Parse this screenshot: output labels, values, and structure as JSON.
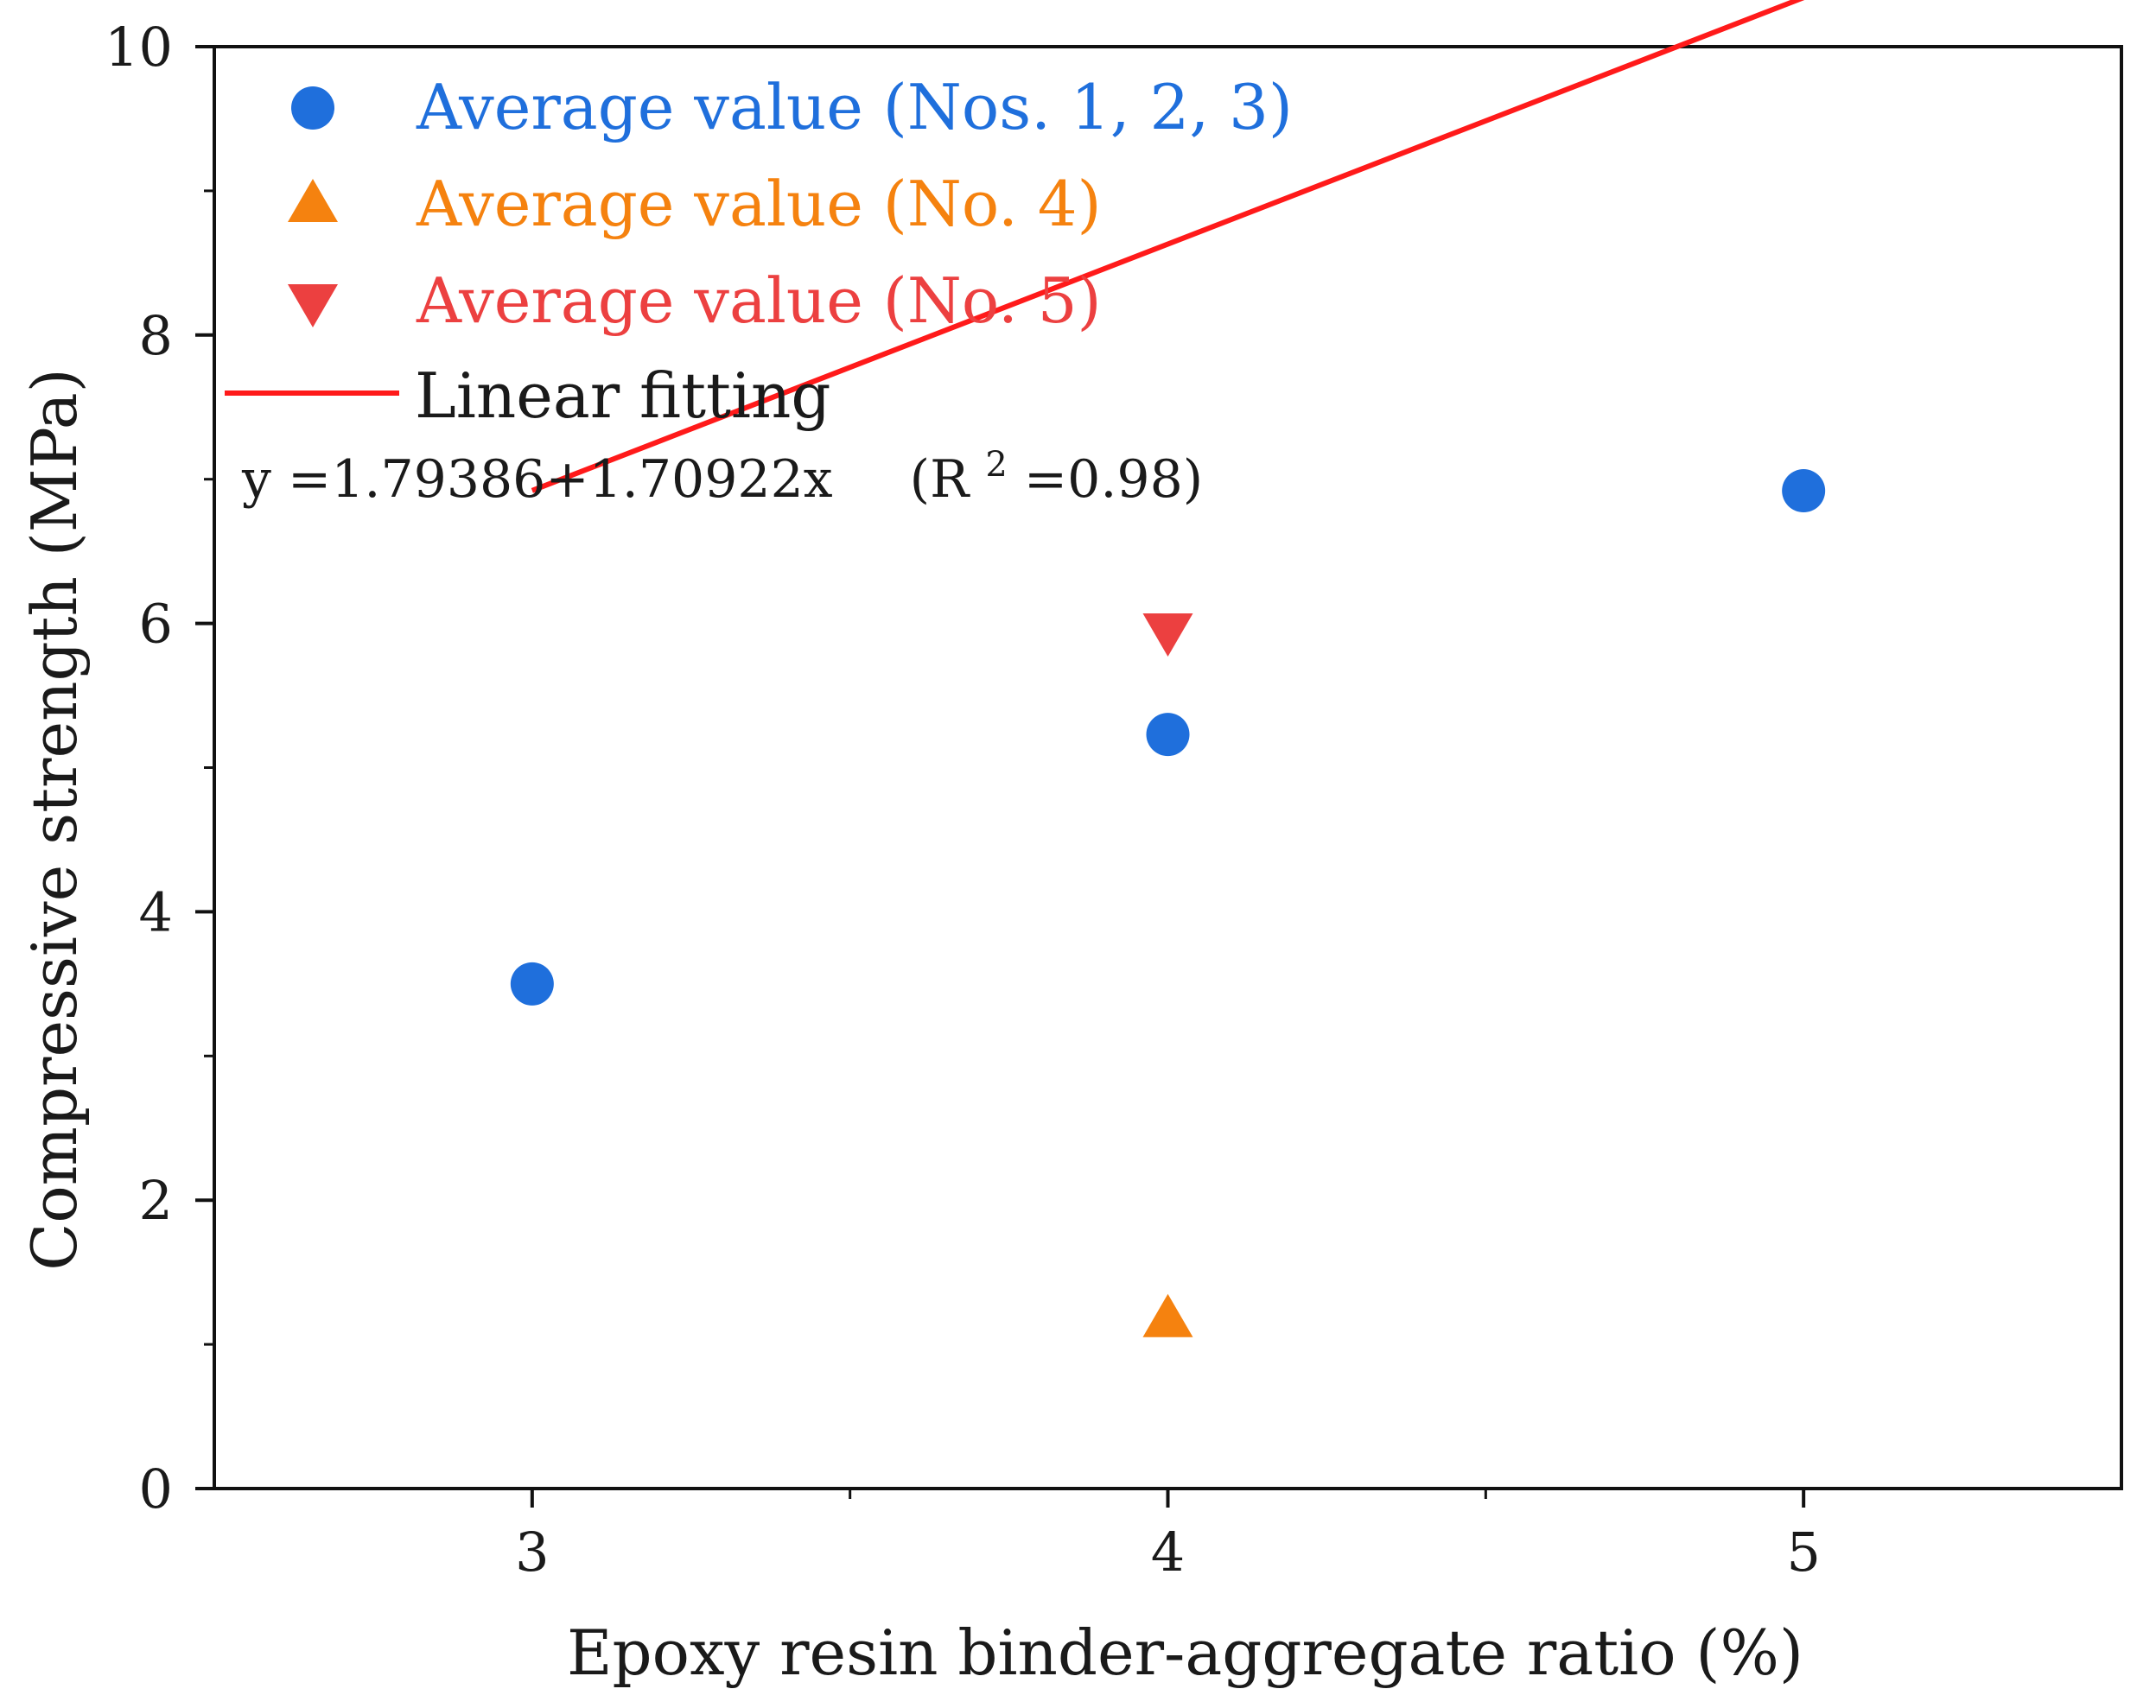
{
  "chart_data": {
    "type": "scatter",
    "xlabel": "Epoxy resin binder-aggregate ratio (%)",
    "ylabel": "Compressive strength (MPa)",
    "xlim": [
      2.5,
      5.5
    ],
    "ylim": [
      0,
      10
    ],
    "xticks": [
      3,
      4,
      5
    ],
    "yticks": [
      0,
      2,
      4,
      6,
      8,
      10
    ],
    "grid": false,
    "legend_position": "top-left",
    "series": [
      {
        "name": "Average value (Nos. 1, 2, 3)",
        "marker": "circle",
        "color": "#1f6fdc",
        "points": [
          [
            3,
            3.5
          ],
          [
            4,
            5.23
          ],
          [
            5,
            6.92
          ]
        ]
      },
      {
        "name": "Average value (No. 4)",
        "marker": "triangle-up",
        "color": "#f5820f",
        "points": [
          [
            4,
            1.17
          ]
        ]
      },
      {
        "name": "Average value (No. 5)",
        "marker": "triangle-down",
        "color": "#ec4040",
        "points": [
          [
            4,
            5.95
          ]
        ]
      }
    ],
    "fit": {
      "name": "Linear fitting",
      "color": "#ff1a1a",
      "intercept": 1.79386,
      "slope": 1.70922,
      "x_range": [
        3,
        5
      ],
      "equation_text": "y =1.79386+1.70922x",
      "r2_prefix": "(R",
      "r2_sup": "2",
      "r2_suffix": "=0.98)"
    }
  }
}
